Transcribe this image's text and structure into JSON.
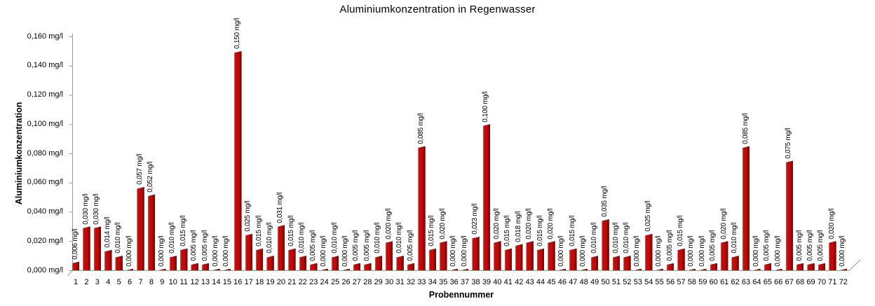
{
  "chart_data": {
    "type": "bar",
    "title": "Aluminiumkonzentration in Regenwasser",
    "xlabel": "Probennummer",
    "ylabel": "Aluminiumkonzentration",
    "unit": "mg/l",
    "ylim": [
      0,
      0.16
    ],
    "grid": false,
    "legend": "none",
    "y_tick_labels": [
      "0,000 mg/l",
      "0,020 mg/l",
      "0,040 mg/l",
      "0,060 mg/l",
      "0,080 mg/l",
      "0,100 mg/l",
      "0,120 mg/l",
      "0,140 mg/l",
      "0,160 mg/l"
    ],
    "categories": [
      1,
      2,
      3,
      4,
      5,
      6,
      7,
      8,
      9,
      10,
      11,
      12,
      13,
      14,
      15,
      16,
      17,
      18,
      19,
      20,
      21,
      22,
      23,
      24,
      25,
      26,
      27,
      28,
      29,
      30,
      31,
      32,
      33,
      34,
      35,
      36,
      37,
      38,
      39,
      40,
      41,
      42,
      43,
      44,
      45,
      46,
      47,
      48,
      49,
      50,
      51,
      52,
      53,
      54,
      55,
      56,
      57,
      58,
      59,
      60,
      61,
      62,
      63,
      64,
      65,
      66,
      67,
      68,
      69,
      70,
      71,
      72
    ],
    "values": [
      0.006,
      0.03,
      0.03,
      0.014,
      0.01,
      0.0,
      0.057,
      0.052,
      0.0,
      0.01,
      0.015,
      0.005,
      0.005,
      0.0,
      0.0,
      0.15,
      0.025,
      0.015,
      0.01,
      0.031,
      0.015,
      0.01,
      0.005,
      0.0,
      0.01,
      0.0,
      0.005,
      0.005,
      0.01,
      0.02,
      0.01,
      0.005,
      0.085,
      0.015,
      0.02,
      0.0,
      0.0,
      0.023,
      0.1,
      0.02,
      0.015,
      0.018,
      0.02,
      0.015,
      0.02,
      0.0,
      0.015,
      0.0,
      0.01,
      0.035,
      0.01,
      0.01,
      0.0,
      0.025,
      0.0,
      0.005,
      0.015,
      0.0,
      0.0,
      0.005,
      0.02,
      0.01,
      0.085,
      0.0,
      0.005,
      0.0,
      0.075,
      0.005,
      0.005,
      0.005,
      0.02,
      0.0
    ],
    "bar_value_labels": [
      "0,006 mg/l",
      "0,030 mg/l",
      "0,030 mg/l",
      "0,014 mg/l",
      "0,010 mg/l",
      "0,000 mg/l",
      "0,057 mg/l",
      "0,052 mg/l",
      "0,000 mg/l",
      "0,010 mg/l",
      "0,015 mg/l",
      "0,005 mg/l",
      "0,005 mg/l",
      "0,000 mg/l",
      "0,000 mg/l",
      "0,150 mg/l",
      "0,025 mg/l",
      "0,015 mg/l",
      "0,010 mg/l",
      "0,031 mg/l",
      "0,015 mg/l",
      "0,010 mg/l",
      "0,005 mg/l",
      "0,000 mg/l",
      "0,010 mg/l",
      "0,000 mg/l",
      "0,005 mg/l",
      "0,005 mg/l",
      "0,010 mg/l",
      "0,020 mg/l",
      "0,010 mg/l",
      "0,005 mg/l",
      "0,085 mg/l",
      "0,015 mg/l",
      "0,020 mg/l",
      "0,000 mg/l",
      "0,000 mg/l",
      "0,023 mg/l",
      "0,100 mg/l",
      "0,020 mg/l",
      "0,015 mg/l",
      "0,018 mg/l",
      "0,020 mg/l",
      "0,015 mg/l",
      "0,020 mg/l",
      "0,000 mg/l",
      "0,015 mg/l",
      "0,000 mg/l",
      "0,010 mg/l",
      "0,035 mg/l",
      "0,010 mg/l",
      "0,010 mg/l",
      "0,000 mg/l",
      "0,025 mg/l",
      "0,000 mg/l",
      "0,005 mg/l",
      "0,015 mg/l",
      "0,000 mg/l",
      "0,000 mg/l",
      "0,005 mg/l",
      "0,020 mg/l",
      "0,010 mg/l",
      "0,085 mg/l",
      "0,000 mg/l",
      "0,005 mg/l",
      "0,000 mg/l",
      "0,075 mg/l",
      "0,005 mg/l",
      "0,005 mg/l",
      "0,005 mg/l",
      "0,020 mg/l",
      "0,000 mg/l"
    ],
    "colors": {
      "bar": "#be0b0b",
      "bar_highlight": "#d4544a",
      "bar_shadow": "#700303",
      "axis": "#9a9a9a",
      "text": "#000000"
    }
  }
}
